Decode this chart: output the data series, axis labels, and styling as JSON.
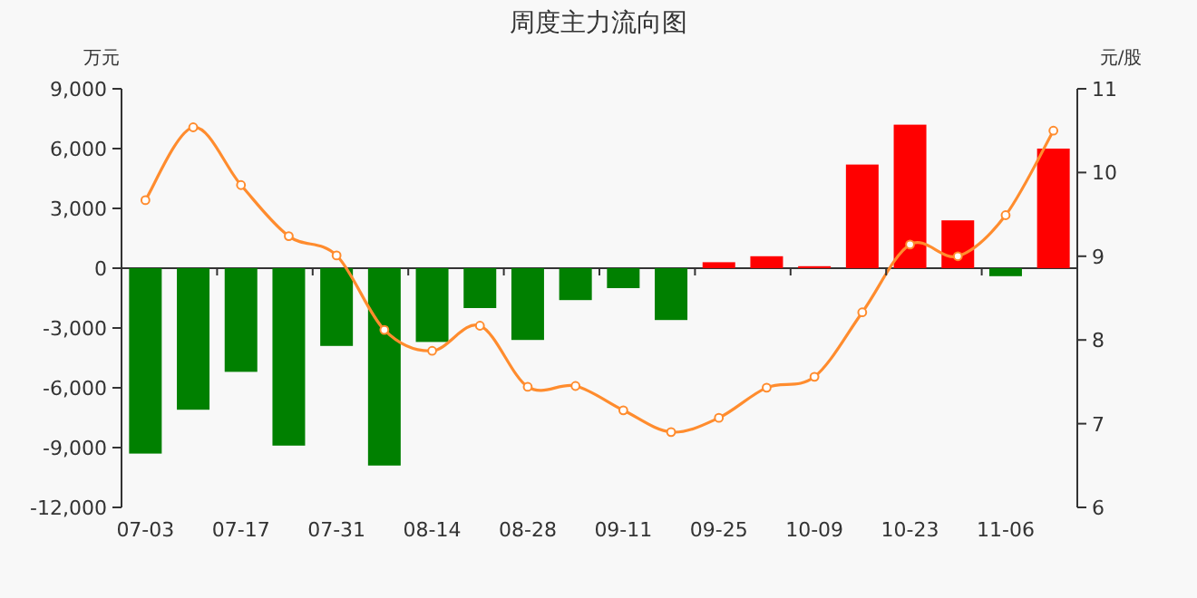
{
  "chart_data": {
    "type": "bar",
    "title": "周度主力流向图",
    "ylabel": "万元",
    "y2label": "元/股",
    "categories": [
      "07-03",
      null,
      "07-17",
      null,
      "07-31",
      null,
      "08-14",
      null,
      "08-28",
      null,
      "09-11",
      null,
      "09-25",
      null,
      "10-09",
      null,
      "10-23",
      null,
      "11-06",
      null
    ],
    "series": [
      {
        "values": [
          -9300,
          -7100,
          -5200,
          -8900,
          -3900,
          -9900,
          -3700,
          -2000,
          -3600,
          -1600,
          -1000,
          -2600,
          300,
          600,
          100,
          5200,
          7200,
          2400,
          -400,
          6000
        ],
        "colors": [
          "#008000",
          "#008000",
          "#008000",
          "#008000",
          "#008000",
          "#008000",
          "#008000",
          "#008000",
          "#008000",
          "#008000",
          "#008000",
          "#008000",
          "#ff0000",
          "#ff0000",
          "#ff0000",
          "#ff0000",
          "#ff0000",
          "#ff0000",
          "#008000",
          "#ff0000"
        ]
      },
      {
        "type": "line",
        "axis": "y2",
        "color": "#ff8c2e",
        "marker": "circle",
        "values": [
          9.67,
          10.54,
          9.85,
          9.24,
          9.01,
          8.12,
          7.87,
          8.17,
          7.44,
          7.45,
          7.16,
          6.9,
          7.07,
          7.43,
          7.56,
          8.33,
          9.14,
          9.0,
          9.49,
          10.5
        ]
      }
    ],
    "ylim": [
      -12000,
      9000
    ],
    "yticks": [
      {
        "value": -12000,
        "label": "-12,000"
      },
      {
        "value": -9000,
        "label": "-9,000"
      },
      {
        "value": -6000,
        "label": "-6,000"
      },
      {
        "value": -3000,
        "label": "-3,000"
      },
      0,
      {
        "value": 3000,
        "label": "3,000"
      },
      {
        "value": 6000,
        "label": "6,000"
      },
      {
        "value": 9000,
        "label": "9,000"
      }
    ],
    "y2lim": [
      6,
      11
    ],
    "y2ticks": [
      6,
      7,
      8,
      9,
      10,
      11
    ]
  }
}
